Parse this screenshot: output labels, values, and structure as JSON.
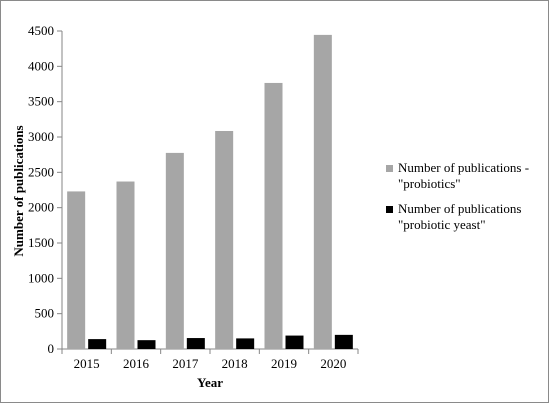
{
  "chart_data": {
    "type": "bar",
    "categories": [
      "2015",
      "2016",
      "2017",
      "2018",
      "2019",
      "2020"
    ],
    "series": [
      {
        "name": "Number of publications - \"probiotics\"",
        "legend_lines": [
          "Number of publications -",
          "\"probiotics\""
        ],
        "color": "#a6a6a6",
        "values": [
          2230,
          2370,
          2775,
          3085,
          3765,
          4445
        ]
      },
      {
        "name": "Number of publications \"probiotic yeast\"",
        "legend_lines": [
          "Number of publications",
          "\"probiotic yeast\""
        ],
        "color": "#000000",
        "values": [
          140,
          125,
          155,
          150,
          190,
          200
        ]
      }
    ],
    "title": "",
    "xlabel": "Year",
    "ylabel": "Number of publications",
    "ylim": [
      0,
      4500
    ],
    "yticks": [
      0,
      500,
      1000,
      1500,
      2000,
      2500,
      3000,
      3500,
      4000,
      4500
    ],
    "grid": false,
    "legend_position": "right"
  }
}
